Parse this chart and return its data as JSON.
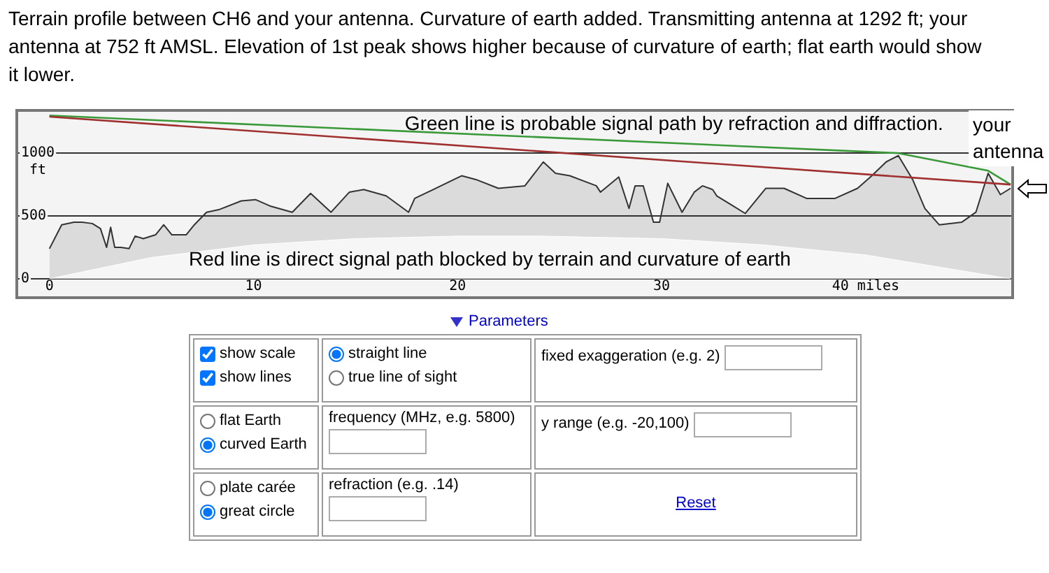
{
  "chart_data": {
    "type": "line",
    "title": "Terrain profile between CH6 and your antenna. Curvature of earth added. Transmitting antenna at 1292 ft; your antenna at 752 ft AMSL. Elevation of 1st peak shows higher because of curvature of earth; flat earth would show it lower.",
    "ylabel": "ft",
    "xlim": [
      -1.6,
      47.2
    ],
    "ylim": [
      -150,
      1340
    ],
    "xticks": [
      0,
      10,
      20,
      30,
      {
        "value": 40,
        "label": "40 miles"
      }
    ],
    "yticks": [
      0,
      500,
      1000
    ],
    "grid": "y",
    "marker": "none",
    "series": [
      {
        "type": "line",
        "color": "#a03030",
        "x": [
          0,
          47.1
        ],
        "values": [
          1290,
          750
        ]
      },
      {
        "type": "line",
        "color": "#3a9a3a",
        "x": [
          0,
          41.6,
          46.0,
          47.1
        ],
        "values": [
          1300,
          1000,
          860,
          750
        ]
      },
      {
        "type": "area",
        "color": "#ffffff",
        "x": [
          0,
          5,
          10,
          15,
          20,
          24,
          30,
          35,
          40,
          47.1
        ],
        "values": [
          0,
          170,
          270,
          320,
          340,
          340,
          320,
          270,
          190,
          0
        ]
      },
      {
        "type": "area",
        "color": "#333333",
        "x": [
          0,
          0.6,
          1.2,
          1.6,
          2.1,
          2.5,
          2.8,
          3.0,
          3.2,
          3.5,
          3.9,
          4.2,
          4.6,
          5.2,
          5.6,
          6.0,
          6.7,
          7.1,
          7.7,
          8.3,
          9.4,
          10.1,
          10.8,
          11.9,
          12.8,
          13.8,
          14.7,
          15.4,
          16.5,
          17.6,
          17.9,
          18.8,
          20.2,
          20.9,
          22.0,
          23.3,
          24.2,
          24.8,
          25.5,
          26.8,
          27.0,
          27.9,
          28.4,
          28.7,
          29.1,
          29.6,
          29.9,
          30.3,
          31.0,
          31.6,
          32.0,
          32.5,
          32.7,
          33.4,
          34.1,
          35.1,
          36.0,
          37.1,
          38.5,
          39.6,
          40.3,
          41.0,
          41.6,
          42.3,
          42.9,
          43.6,
          44.7,
          45.4,
          46.0,
          46.6,
          47.1
        ],
        "values": [
          240,
          430,
          450,
          450,
          440,
          400,
          250,
          410,
          250,
          250,
          240,
          340,
          320,
          350,
          430,
          350,
          350,
          430,
          530,
          550,
          620,
          630,
          580,
          530,
          680,
          530,
          690,
          710,
          660,
          530,
          640,
          710,
          820,
          790,
          720,
          740,
          930,
          840,
          820,
          740,
          690,
          810,
          560,
          740,
          740,
          450,
          450,
          760,
          530,
          690,
          740,
          710,
          660,
          590,
          520,
          720,
          720,
          640,
          640,
          720,
          820,
          930,
          980,
          790,
          560,
          430,
          450,
          530,
          840,
          670,
          720
        ]
      }
    ],
    "annotations": [
      "Green line is probable signal path by refraction and diffraction.",
      "Red line is direct signal path blocked by terrain and curvature of earth",
      {
        "text": "your antenna",
        "x": 47.1,
        "y": 750
      },
      "Parameters",
      "show scale",
      "show lines",
      "straight line",
      "true line of sight",
      "fixed exaggeration (e.g. 2)",
      "flat Earth",
      "curved Earth",
      "frequency (MHz, e.g. 5800)",
      "y range (e.g. -20,100)",
      "plate carée",
      "great circle",
      "refraction (e.g. .14)",
      "Reset"
    ]
  }
}
